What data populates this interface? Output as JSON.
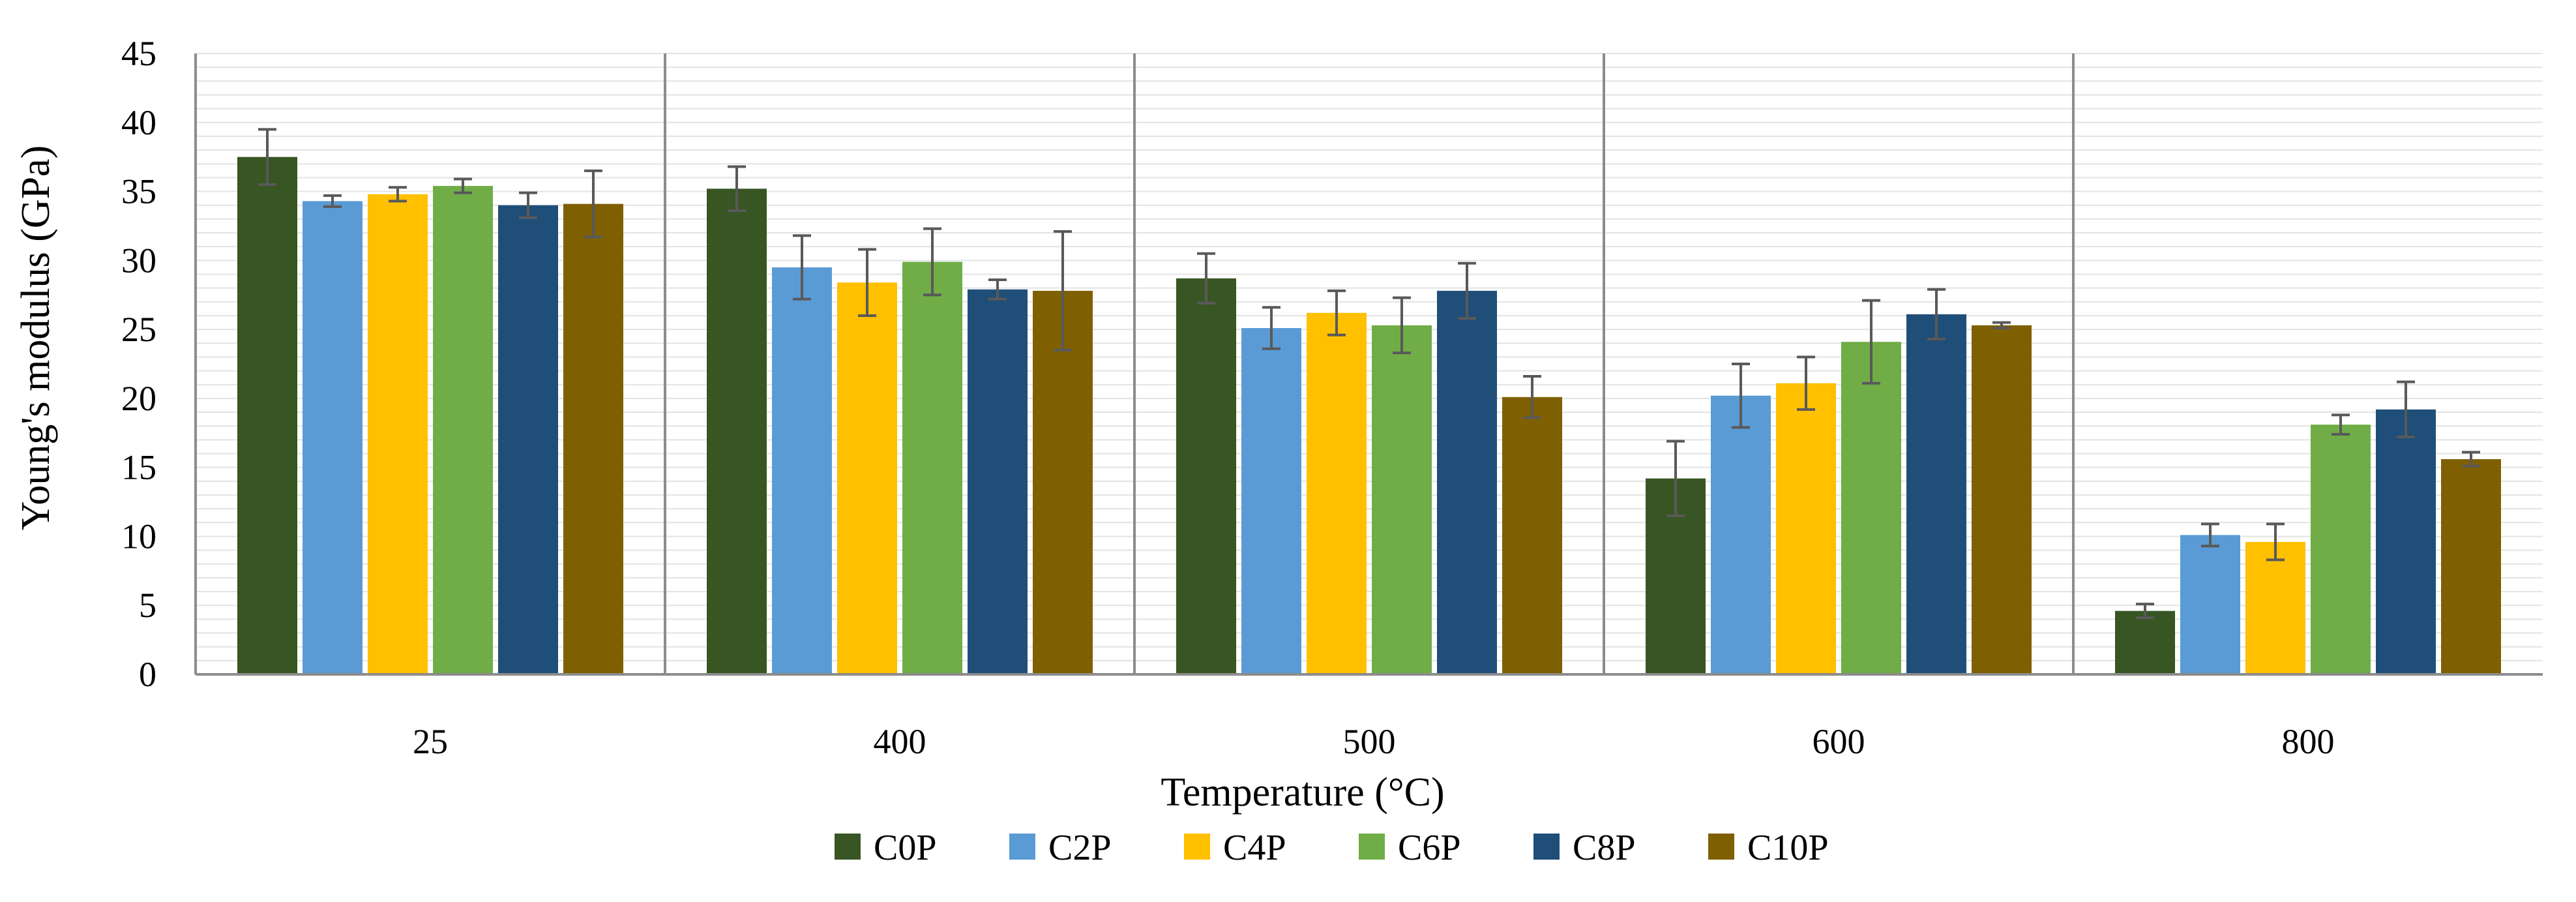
{
  "chart_data": {
    "type": "bar",
    "title": "",
    "xlabel": "Temperature (°C)",
    "ylabel": "Young's modulus (GPa)",
    "ylim": [
      0,
      45
    ],
    "yticks": [
      "0",
      "5",
      "10",
      "15",
      "20",
      "25",
      "30",
      "35",
      "40",
      "45"
    ],
    "grid": "minor horizontal gridlines every 1 GPa",
    "legend_position": "bottom",
    "categories": [
      "25",
      "400",
      "500",
      "600",
      "800"
    ],
    "series": [
      {
        "name": "C0P",
        "color": "#375623",
        "values": [
          37.5,
          35.2,
          28.7,
          14.2,
          4.6
        ],
        "errors": [
          2.0,
          1.6,
          1.8,
          2.7,
          0.5
        ]
      },
      {
        "name": "C2P",
        "color": "#5B9BD5",
        "values": [
          34.3,
          29.5,
          25.1,
          20.2,
          10.1
        ],
        "errors": [
          0.4,
          2.3,
          1.5,
          2.3,
          0.8
        ]
      },
      {
        "name": "C4P",
        "color": "#FFC000",
        "values": [
          34.8,
          28.4,
          26.2,
          21.1,
          9.6
        ],
        "errors": [
          0.5,
          2.4,
          1.6,
          1.9,
          1.3
        ]
      },
      {
        "name": "C6P",
        "color": "#70AD47",
        "values": [
          35.4,
          29.9,
          25.3,
          24.1,
          18.1
        ],
        "errors": [
          0.5,
          2.4,
          2.0,
          3.0,
          0.7
        ]
      },
      {
        "name": "C8P",
        "color": "#1F4E79",
        "values": [
          34.0,
          27.9,
          27.8,
          26.1,
          19.2
        ],
        "errors": [
          0.9,
          0.7,
          2.0,
          1.8,
          2.0
        ]
      },
      {
        "name": "C10P",
        "color": "#7F6000",
        "values": [
          34.1,
          27.8,
          20.1,
          25.3,
          15.6
        ],
        "errors": [
          2.4,
          4.3,
          1.5,
          0.2,
          0.5
        ]
      }
    ]
  }
}
